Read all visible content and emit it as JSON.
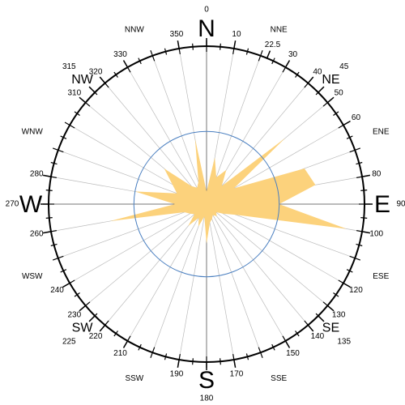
{
  "chart_data": {
    "type": "wind-rose",
    "x": [
      0,
      10,
      20,
      30,
      40,
      50,
      60,
      70,
      80,
      90,
      100,
      110,
      120,
      130,
      140,
      150,
      160,
      170,
      180,
      190,
      200,
      210,
      220,
      230,
      240,
      250,
      260,
      270,
      280,
      290,
      300,
      310,
      320,
      330,
      340,
      350
    ],
    "values": [
      8,
      30,
      18,
      25,
      15,
      65,
      20,
      66,
      70,
      46,
      90,
      20,
      12,
      8,
      10,
      8,
      10,
      12,
      25,
      8,
      15,
      10,
      18,
      10,
      12,
      15,
      62,
      20,
      46,
      20,
      25,
      35,
      15,
      12,
      15,
      42
    ],
    "color": "#fcd27c",
    "rlim": [
      0,
      100
    ],
    "rings": [
      46
    ],
    "ring_color": "#4a7fc0",
    "angle_ticks": [
      0,
      10,
      22.5,
      30,
      40,
      45,
      50,
      60,
      80,
      90,
      100,
      120,
      130,
      135,
      140,
      150,
      170,
      180,
      190,
      210,
      220,
      225,
      230,
      240,
      260,
      270,
      280,
      310,
      315,
      320,
      330,
      350
    ],
    "compass": [
      {
        "value": 0,
        "label": "N"
      },
      {
        "value": 22.5,
        "label": "NNE"
      },
      {
        "value": 45,
        "label": "NE"
      },
      {
        "value": 67.5,
        "label": "ENE"
      },
      {
        "value": 90,
        "label": "E"
      },
      {
        "value": 112.5,
        "label": "ESE"
      },
      {
        "value": 135,
        "label": "SE"
      },
      {
        "value": 157.5,
        "label": "SSE"
      },
      {
        "value": 180,
        "label": "S"
      },
      {
        "value": 202.5,
        "label": "SSW"
      },
      {
        "value": 225,
        "label": "SW"
      },
      {
        "value": 247.5,
        "label": "WSW"
      },
      {
        "value": 270,
        "label": "W"
      },
      {
        "value": 292.5,
        "label": "WNW"
      },
      {
        "value": 315,
        "label": "NW"
      },
      {
        "value": 337.5,
        "label": "NNW"
      }
    ]
  }
}
